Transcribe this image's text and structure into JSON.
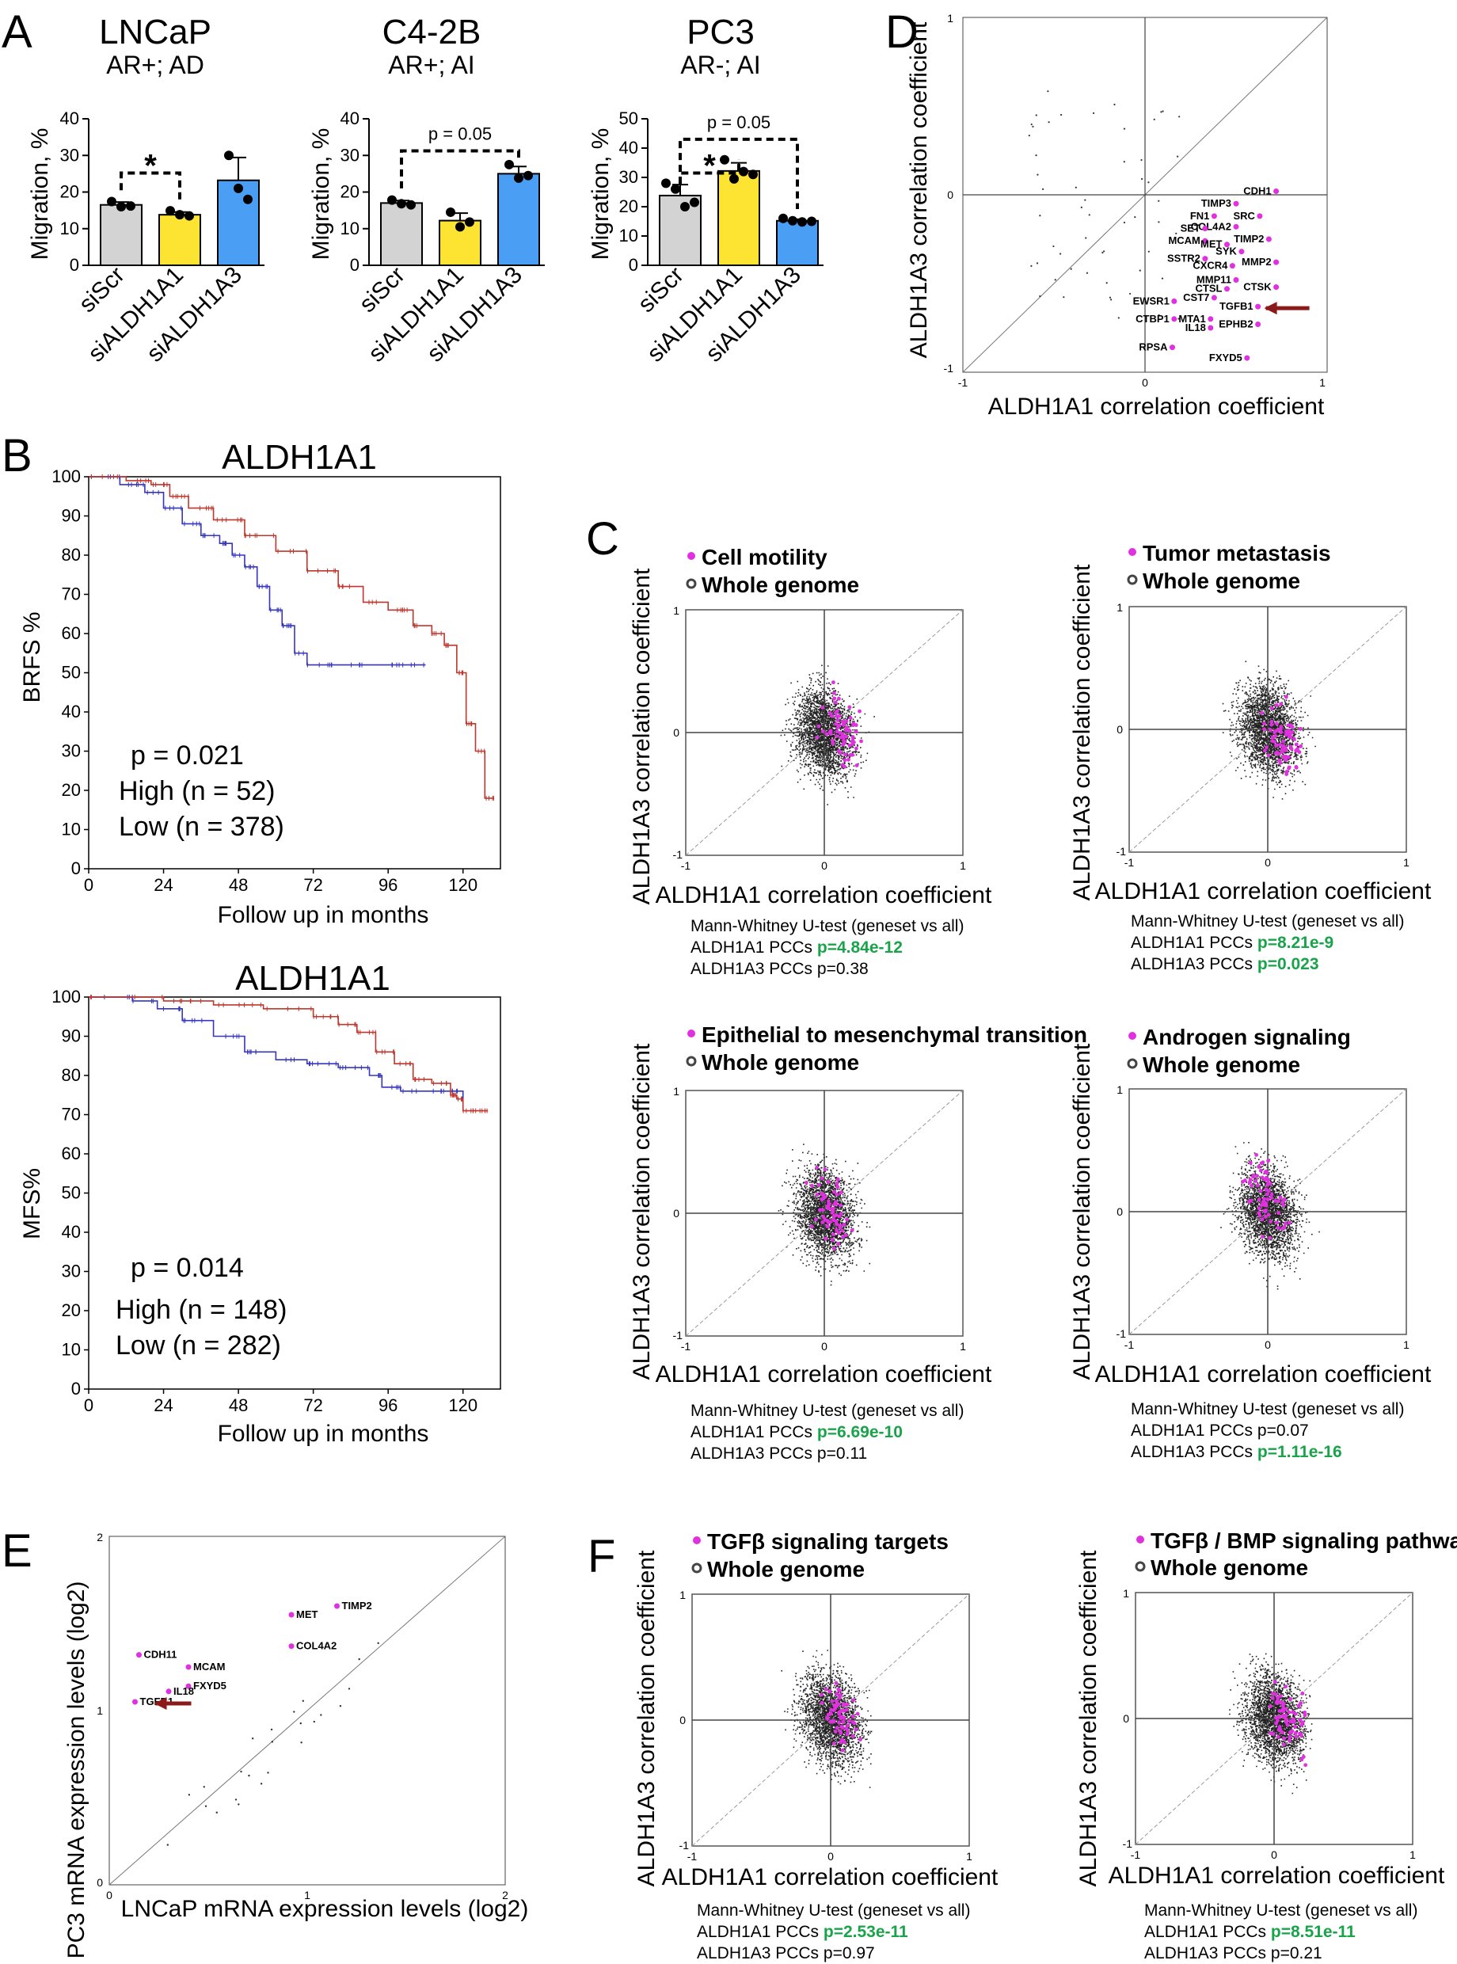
{
  "panel_letters": {
    "A": "A",
    "B": "B",
    "C": "C",
    "D": "D",
    "E": "E",
    "F": "F"
  },
  "colors": {
    "gray": "#d3d3d3",
    "yellow": "#fde432",
    "blue": "#4a9ff5",
    "high": "#3535c0",
    "low": "#c0362c",
    "magenta": "#e030e0",
    "green": "#19a34a",
    "arrow": "#8b1a1a"
  },
  "chart_data": [
    {
      "type": "bar",
      "panel": "A",
      "title": "LNCaP",
      "subtitle": "AR+; AD",
      "categories": [
        "siScr",
        "siALDH1A1",
        "siALDH1A3"
      ],
      "values": [
        16.5,
        13.8,
        23.2
      ],
      "points": [
        [
          17.4,
          16.0,
          16.2
        ],
        [
          14.9,
          13.8,
          13.5
        ],
        [
          30.0,
          21.0,
          18.0
        ]
      ],
      "ylabel": "Migration, %",
      "ylim": [
        0,
        40
      ],
      "yticks": [
        0,
        10,
        20,
        30,
        40
      ],
      "annotations": [
        {
          "from": 0,
          "to": 1,
          "text": "*"
        }
      ]
    },
    {
      "type": "bar",
      "panel": "A",
      "title": "C4-2B",
      "subtitle": "AR+; AI",
      "categories": [
        "siScr",
        "siALDH1A1",
        "siALDH1A3"
      ],
      "values": [
        17.0,
        12.2,
        25.0
      ],
      "points": [
        [
          17.8,
          16.8,
          16.5
        ],
        [
          14.5,
          10.5,
          11.8
        ],
        [
          27.5,
          23.8,
          24.5
        ]
      ],
      "ylabel": "Migration, %",
      "ylim": [
        0,
        40
      ],
      "yticks": [
        0,
        10,
        20,
        30,
        40
      ],
      "annotations": [
        {
          "from": 0,
          "to": 2,
          "text": "p = 0.05"
        }
      ]
    },
    {
      "type": "bar",
      "panel": "A",
      "title": "PC3",
      "subtitle": "AR-; AI",
      "categories": [
        "siScr",
        "siALDH1A1",
        "siALDH1A3"
      ],
      "values": [
        23.8,
        32.2,
        15.2
      ],
      "points": [
        [
          28.0,
          26.0,
          20.0,
          21.5
        ],
        [
          36.0,
          29.5,
          32.0,
          31.0
        ],
        [
          16.0,
          15.2,
          14.8,
          15.0
        ]
      ],
      "ylabel": "Migration, %",
      "ylim": [
        0,
        50
      ],
      "yticks": [
        0,
        10,
        20,
        30,
        40,
        50
      ],
      "annotations": [
        {
          "from": 0,
          "to": 1,
          "text": "*"
        },
        {
          "from": 0,
          "to": 2,
          "text": "p = 0.05"
        }
      ]
    },
    {
      "type": "line",
      "panel": "B",
      "title": "ALDH1A1",
      "ylabel": "BRFS %",
      "xlabel": "Follow up in months",
      "xlim": [
        0,
        132
      ],
      "ylim": [
        0,
        100
      ],
      "xticks": [
        0,
        24,
        48,
        72,
        96,
        120
      ],
      "yticks": [
        0,
        10,
        20,
        30,
        40,
        50,
        60,
        70,
        80,
        90,
        100
      ],
      "pvalue": "p = 0.021",
      "series": [
        {
          "name": "High (n = 52)",
          "color": "#3535c0",
          "x": [
            0,
            10,
            18,
            24,
            30,
            36,
            42,
            46,
            50,
            54,
            58,
            62,
            66,
            70,
            78,
            90,
            100,
            108
          ],
          "y": [
            100,
            98,
            96,
            92,
            88,
            85,
            83,
            80,
            77,
            72,
            66,
            62,
            55,
            52,
            52,
            52,
            52,
            52
          ]
        },
        {
          "name": "Low (n = 378)",
          "color": "#c0362c",
          "x": [
            0,
            12,
            20,
            26,
            32,
            40,
            50,
            60,
            70,
            80,
            88,
            96,
            104,
            110,
            114,
            118,
            121,
            124,
            127,
            130
          ],
          "y": [
            100,
            99,
            98,
            95,
            92,
            89,
            85,
            81,
            76,
            72,
            68,
            66,
            62,
            60,
            57,
            50,
            37,
            30,
            18,
            18
          ]
        }
      ]
    },
    {
      "type": "line",
      "panel": "B",
      "title": "ALDH1A1",
      "ylabel": "MFS%",
      "xlabel": "Follow up in months",
      "xlim": [
        0,
        132
      ],
      "ylim": [
        0,
        100
      ],
      "xticks": [
        0,
        24,
        48,
        72,
        96,
        120
      ],
      "yticks": [
        0,
        10,
        20,
        30,
        40,
        50,
        60,
        70,
        80,
        90,
        100
      ],
      "pvalue": "p = 0.014",
      "series": [
        {
          "name": "High (n = 148)",
          "color": "#3535c0",
          "x": [
            0,
            14,
            22,
            30,
            40,
            50,
            60,
            70,
            80,
            90,
            94,
            100,
            108,
            116,
            120
          ],
          "y": [
            100,
            99,
            97,
            94,
            90,
            86,
            84,
            83,
            82,
            80,
            77,
            76,
            76,
            76,
            74
          ]
        },
        {
          "name": "Low (n = 282)",
          "color": "#c0362c",
          "x": [
            0,
            24,
            40,
            56,
            72,
            80,
            86,
            92,
            98,
            104,
            110,
            116,
            118,
            120,
            124,
            128
          ],
          "y": [
            100,
            99,
            98,
            97,
            95,
            93,
            91,
            86,
            83,
            79,
            78,
            75,
            74,
            71,
            71,
            71
          ]
        }
      ]
    },
    {
      "type": "scatter",
      "panel": "D",
      "xlabel": "ALDH1A1 correlation coefficient",
      "ylabel": "ALDH1A3 correlation coefficient",
      "xlim": [
        -1,
        1
      ],
      "ylim": [
        -1,
        1
      ],
      "xticks": [
        "-1",
        "0",
        "1"
      ],
      "yticks": [
        "-1",
        "0",
        "1"
      ],
      "labeled_points": [
        {
          "label": "CDH1",
          "x": 0.72,
          "y": 0.02
        },
        {
          "label": "TIMP3",
          "x": 0.5,
          "y": -0.05
        },
        {
          "label": "SRC",
          "x": 0.63,
          "y": -0.12
        },
        {
          "label": "FN1",
          "x": 0.38,
          "y": -0.12
        },
        {
          "label": "COL4A2",
          "x": 0.5,
          "y": -0.18
        },
        {
          "label": "SET",
          "x": 0.33,
          "y": -0.19
        },
        {
          "label": "TIMP2",
          "x": 0.68,
          "y": -0.25
        },
        {
          "label": "MCAM",
          "x": 0.33,
          "y": -0.26
        },
        {
          "label": "MET",
          "x": 0.45,
          "y": -0.28
        },
        {
          "label": "SYK",
          "x": 0.53,
          "y": -0.32
        },
        {
          "label": "MMP2",
          "x": 0.72,
          "y": -0.38
        },
        {
          "label": "SSTR2",
          "x": 0.33,
          "y": -0.36
        },
        {
          "label": "CXCR4",
          "x": 0.48,
          "y": -0.4
        },
        {
          "label": "MMP11",
          "x": 0.5,
          "y": -0.48
        },
        {
          "label": "CTSK",
          "x": 0.72,
          "y": -0.52
        },
        {
          "label": "CTSL",
          "x": 0.45,
          "y": -0.53
        },
        {
          "label": "CST7",
          "x": 0.38,
          "y": -0.58
        },
        {
          "label": "EWSR1",
          "x": 0.16,
          "y": -0.6
        },
        {
          "label": "TGFB1",
          "x": 0.62,
          "y": -0.63
        },
        {
          "label": "MTA1",
          "x": 0.36,
          "y": -0.7
        },
        {
          "label": "CTBP1",
          "x": 0.16,
          "y": -0.7
        },
        {
          "label": "EPHB2",
          "x": 0.62,
          "y": -0.73
        },
        {
          "label": "IL18",
          "x": 0.36,
          "y": -0.75
        },
        {
          "label": "RPSA",
          "x": 0.15,
          "y": -0.86
        },
        {
          "label": "FXYD5",
          "x": 0.56,
          "y": -0.92
        }
      ]
    },
    {
      "type": "scatter",
      "panel": "C",
      "legend": [
        "Cell motility",
        "Whole genome"
      ],
      "xlabel": "ALDH1A1 correlation coefficient",
      "ylabel": "ALDH1A3 correlation coefficient",
      "xlim": [
        -1,
        1
      ],
      "ylim": [
        -1,
        1
      ],
      "test": "Mann-Whitney U-test (geneset vs all)",
      "stats": [
        {
          "label": "ALDH1A1 PCCs ",
          "value": "p=4.84e-12",
          "significant": true
        },
        {
          "label": "ALDH1A3 PCCs ",
          "value": "p=0.38",
          "significant": false
        }
      ]
    },
    {
      "type": "scatter",
      "panel": "C",
      "legend": [
        "Tumor metastasis",
        "Whole genome"
      ],
      "xlabel": "ALDH1A1 correlation coefficient",
      "ylabel": "ALDH1A3 correlation coefficient",
      "xlim": [
        -1,
        1
      ],
      "ylim": [
        -1,
        1
      ],
      "test": "Mann-Whitney U-test (geneset vs all)",
      "stats": [
        {
          "label": "ALDH1A1 PCCs ",
          "value": "p=8.21e-9",
          "significant": true
        },
        {
          "label": "ALDH1A3 PCCs ",
          "value": "p=0.023",
          "significant": true
        }
      ]
    },
    {
      "type": "scatter",
      "panel": "C",
      "legend": [
        "Epithelial to mesenchymal transition",
        "Whole genome"
      ],
      "xlabel": "ALDH1A1 correlation coefficient",
      "ylabel": "ALDH1A3 correlation coefficient",
      "xlim": [
        -1,
        1
      ],
      "ylim": [
        -1,
        1
      ],
      "test": "Mann-Whitney U-test (geneset vs all)",
      "stats": [
        {
          "label": "ALDH1A1 PCCs ",
          "value": "p=6.69e-10",
          "significant": true
        },
        {
          "label": "ALDH1A3 PCCs ",
          "value": "p=0.11",
          "significant": false
        }
      ]
    },
    {
      "type": "scatter",
      "panel": "C",
      "legend": [
        "Androgen signaling",
        "Whole genome"
      ],
      "xlabel": "ALDH1A1 correlation coefficient",
      "ylabel": "ALDH1A3 correlation coefficient",
      "xlim": [
        -1,
        1
      ],
      "ylim": [
        -1,
        1
      ],
      "test": "Mann-Whitney U-test (geneset vs all)",
      "stats": [
        {
          "label": "ALDH1A1 PCCs ",
          "value": "p=0.07",
          "significant": false
        },
        {
          "label": "ALDH1A3 PCCs ",
          "value": "p=1.11e-16",
          "significant": true
        }
      ]
    },
    {
      "type": "scatter",
      "panel": "E",
      "xlabel": "LNCaP mRNA expression levels (log2)",
      "ylabel": "PC3 mRNA expression levels (log2)",
      "xlim": [
        0,
        2
      ],
      "ylim": [
        0,
        2
      ],
      "xticks": [
        "0",
        "1",
        "2"
      ],
      "yticks": [
        "0",
        "1",
        "2"
      ],
      "labeled_points": [
        {
          "label": "TIMP2",
          "x": 1.15,
          "y": 1.6
        },
        {
          "label": "MET",
          "x": 0.92,
          "y": 1.55
        },
        {
          "label": "COL4A2",
          "x": 0.92,
          "y": 1.37
        },
        {
          "label": "CDH11",
          "x": 0.15,
          "y": 1.32
        },
        {
          "label": "MCAM",
          "x": 0.4,
          "y": 1.25
        },
        {
          "label": "FXYD5",
          "x": 0.4,
          "y": 1.14
        },
        {
          "label": "IL18",
          "x": 0.3,
          "y": 1.11
        },
        {
          "label": "TGFB1",
          "x": 0.13,
          "y": 1.05
        }
      ]
    },
    {
      "type": "scatter",
      "panel": "F",
      "legend": [
        "TGFβ signaling targets",
        "Whole genome"
      ],
      "xlabel": "ALDH1A1 correlation coefficient",
      "ylabel": "ALDH1A3 correlation coefficient",
      "xlim": [
        -1,
        1
      ],
      "ylim": [
        -1,
        1
      ],
      "test": "Mann-Whitney U-test (geneset vs all)",
      "stats": [
        {
          "label": "ALDH1A1 PCCs ",
          "value": "p=2.53e-11",
          "significant": true
        },
        {
          "label": "ALDH1A3 PCCs ",
          "value": "p=0.97",
          "significant": false
        }
      ]
    },
    {
      "type": "scatter",
      "panel": "F",
      "legend": [
        "TGFβ / BMP signaling pathway",
        "Whole genome"
      ],
      "xlabel": "ALDH1A1 correlation coefficient",
      "ylabel": "ALDH1A3 correlation coefficient",
      "xlim": [
        -1,
        1
      ],
      "ylim": [
        -1,
        1
      ],
      "test": "Mann-Whitney U-test (geneset vs all)",
      "stats": [
        {
          "label": "ALDH1A1 PCCs ",
          "value": "p=8.51e-11",
          "significant": true
        },
        {
          "label": "ALDH1A3 PCCs ",
          "value": "p=0.21",
          "significant": false
        }
      ]
    }
  ]
}
